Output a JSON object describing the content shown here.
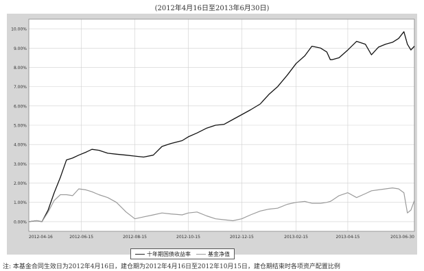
{
  "caption": "(2012年4月16日至2013年6月30日)",
  "note": "注: 本基金合同生效日为2012年4月16日，建仓期为2012年4月16日至2012年10月15日，建仓期结束时各项资产配置比例",
  "colors": {
    "series1": "#111111",
    "series2": "#9a9a9a",
    "panel": "#d6d6d6",
    "plot_bg": "#ffffff",
    "grid": "#cfcfcf"
  },
  "chart_data": {
    "type": "line",
    "title": "",
    "xlabel": "",
    "ylabel": "",
    "yticks": [
      "0.00%",
      "1.00%",
      "2.00%",
      "3.00%",
      "4.00%",
      "5.00%",
      "6.00%",
      "7.00%",
      "8.00%",
      "9.00%",
      "10.00%"
    ],
    "ylim": [
      -0.5,
      10.5
    ],
    "xticks": [
      "2012-04-16",
      "2012-06-15",
      "2012-08-15",
      "2012-10-15",
      "2012-12-15",
      "2013-02-15",
      "2013-04-15",
      "2013-06-30"
    ],
    "grid": true,
    "legend_position": "bottom",
    "series": [
      {
        "name": "十年期国债收益率",
        "x": [
          "2012-04-16",
          "2012-04-25",
          "2012-05-01",
          "2012-05-08",
          "2012-05-15",
          "2012-05-22",
          "2012-05-29",
          "2012-06-05",
          "2012-06-12",
          "2012-06-20",
          "2012-06-27",
          "2012-07-05",
          "2012-07-15",
          "2012-07-25",
          "2012-08-05",
          "2012-08-15",
          "2012-08-25",
          "2012-09-05",
          "2012-09-15",
          "2012-09-25",
          "2012-10-08",
          "2012-10-15",
          "2012-10-25",
          "2012-11-05",
          "2012-11-15",
          "2012-11-25",
          "2012-12-05",
          "2012-12-15",
          "2012-12-25",
          "2013-01-05",
          "2013-01-15",
          "2013-01-25",
          "2013-02-05",
          "2013-02-15",
          "2013-02-25",
          "2013-03-05",
          "2013-03-15",
          "2013-03-22",
          "2013-03-26",
          "2013-03-28",
          "2013-04-05",
          "2013-04-15",
          "2013-04-25",
          "2013-05-05",
          "2013-05-12",
          "2013-05-20",
          "2013-05-28",
          "2013-06-05",
          "2013-06-12",
          "2013-06-18",
          "2013-06-22",
          "2013-06-26",
          "2013-06-30"
        ],
        "values": [
          0.0,
          0.05,
          0.0,
          0.6,
          1.5,
          2.3,
          3.2,
          3.3,
          3.45,
          3.6,
          3.75,
          3.7,
          3.55,
          3.5,
          3.45,
          3.4,
          3.35,
          3.45,
          3.9,
          4.05,
          4.2,
          4.4,
          4.6,
          4.85,
          5.0,
          5.05,
          5.3,
          5.55,
          5.8,
          6.1,
          6.6,
          7.0,
          7.6,
          8.2,
          8.6,
          9.1,
          9.0,
          8.8,
          8.4,
          8.4,
          8.5,
          8.9,
          9.35,
          9.2,
          8.65,
          9.05,
          9.2,
          9.3,
          9.5,
          9.85,
          9.2,
          8.9,
          9.1
        ]
      },
      {
        "name": "基金净值",
        "x": [
          "2012-04-16",
          "2012-04-25",
          "2012-05-01",
          "2012-05-08",
          "2012-05-15",
          "2012-05-22",
          "2012-05-29",
          "2012-06-05",
          "2012-06-12",
          "2012-06-20",
          "2012-06-27",
          "2012-07-05",
          "2012-07-15",
          "2012-07-25",
          "2012-08-05",
          "2012-08-15",
          "2012-08-25",
          "2012-09-05",
          "2012-09-15",
          "2012-09-25",
          "2012-10-08",
          "2012-10-15",
          "2012-10-25",
          "2012-11-05",
          "2012-11-15",
          "2012-11-25",
          "2012-12-05",
          "2012-12-15",
          "2012-12-25",
          "2013-01-05",
          "2013-01-15",
          "2013-01-25",
          "2013-02-05",
          "2013-02-15",
          "2013-02-25",
          "2013-03-05",
          "2013-03-15",
          "2013-03-22",
          "2013-03-26",
          "2013-03-28",
          "2013-04-05",
          "2013-04-15",
          "2013-04-25",
          "2013-05-05",
          "2013-05-12",
          "2013-05-20",
          "2013-05-28",
          "2013-06-05",
          "2013-06-12",
          "2013-06-18",
          "2013-06-22",
          "2013-06-26",
          "2013-06-30"
        ],
        "values": [
          0.0,
          0.05,
          0.0,
          0.5,
          1.1,
          1.4,
          1.4,
          1.35,
          1.7,
          1.65,
          1.55,
          1.4,
          1.25,
          1.0,
          0.5,
          0.15,
          0.25,
          0.35,
          0.45,
          0.4,
          0.35,
          0.45,
          0.5,
          0.3,
          0.15,
          0.1,
          0.05,
          0.15,
          0.35,
          0.55,
          0.65,
          0.7,
          0.9,
          1.0,
          1.05,
          0.95,
          0.95,
          1.0,
          1.05,
          1.1,
          1.35,
          1.5,
          1.25,
          1.45,
          1.6,
          1.65,
          1.7,
          1.75,
          1.7,
          1.5,
          0.45,
          0.6,
          1.1
        ]
      }
    ]
  }
}
